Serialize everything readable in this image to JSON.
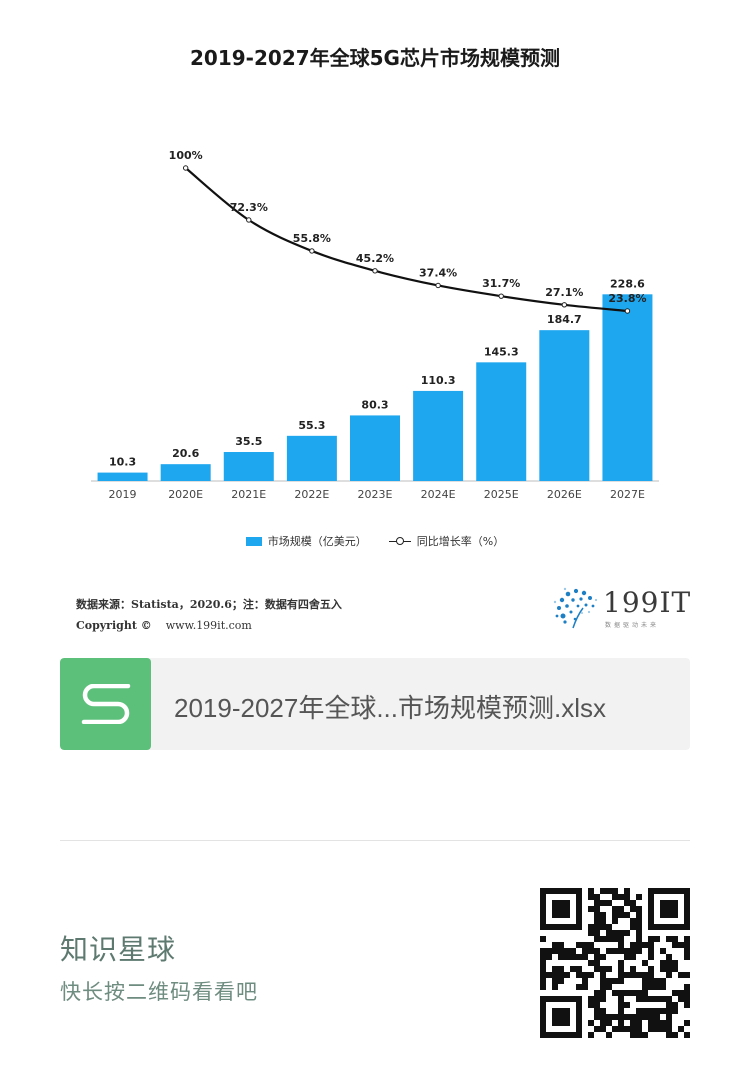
{
  "chart_data": {
    "type": "bar",
    "title": "2019-2027年全球5G芯片市场规模预测",
    "categories": [
      "2019",
      "2020E",
      "2021E",
      "2022E",
      "2023E",
      "2024E",
      "2025E",
      "2026E",
      "2027E"
    ],
    "series": [
      {
        "name": "市场规模（亿美元）",
        "type": "bar",
        "color": "#1ea7ef",
        "values": [
          10.3,
          20.6,
          35.5,
          55.3,
          80.3,
          110.3,
          145.3,
          184.7,
          228.6
        ],
        "labels": [
          "10.3",
          "20.6",
          "35.5",
          "55.3",
          "80.3",
          "110.3",
          "145.3",
          "184.7",
          "228.6"
        ]
      },
      {
        "name": "同比增长率（%）",
        "type": "line",
        "color": "#111111",
        "values": [
          null,
          100,
          72.3,
          55.8,
          45.2,
          37.4,
          31.7,
          27.1,
          23.8
        ],
        "labels": [
          null,
          "100%",
          "72.3%",
          "55.8%",
          "45.2%",
          "37.4%",
          "31.7%",
          "27.1%",
          "23.8%"
        ]
      }
    ],
    "ylim": [
      0,
      240
    ],
    "y2lim": [
      0,
      100
    ],
    "grid": false,
    "legend": "bottom"
  },
  "source": {
    "line1": "数据来源：Statista，2020.6；注：数据有四舍五入",
    "line2_label": "Copyright ©",
    "line2_url": "www.199it.com"
  },
  "logo": {
    "text": "199IT",
    "subtitle": "数据驱动未来"
  },
  "file": {
    "name": "2019-2027年全球...市场规模预测.xlsx",
    "icon": "spreadsheet-s-icon"
  },
  "promo": {
    "title": "知识星球",
    "subtitle": "快长按二维码看看吧"
  }
}
